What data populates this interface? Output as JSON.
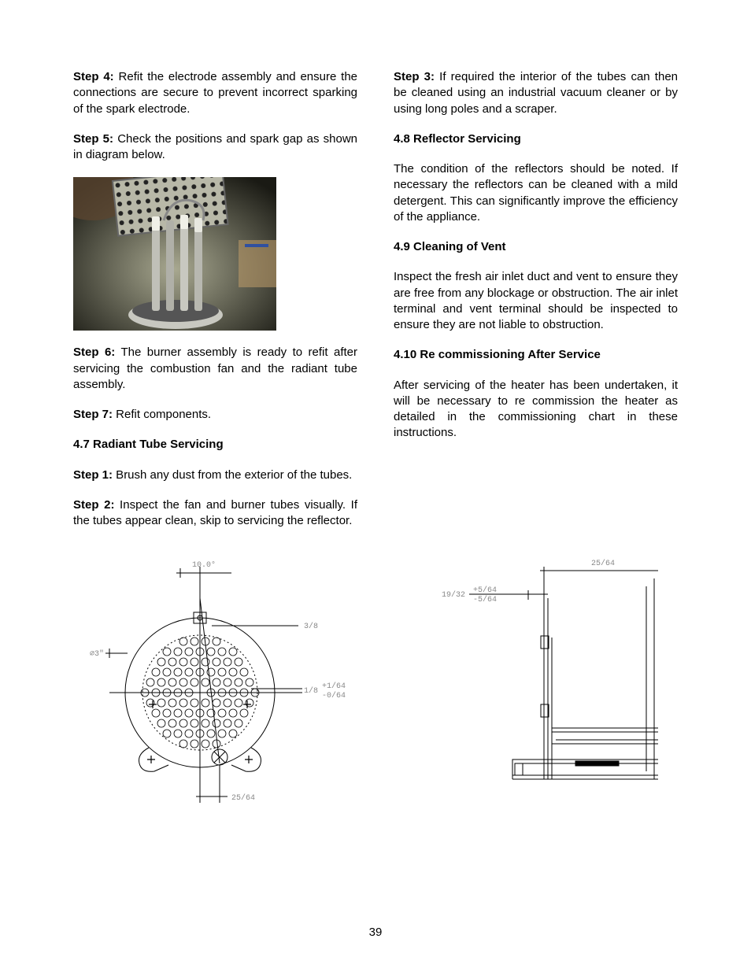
{
  "page_number": "39",
  "left_column": {
    "step4": {
      "label": "Step 4:",
      "text": " Refit the electrode assembly and ensure the connections are secure to prevent incorrect sparking of the spark electrode."
    },
    "step5": {
      "label": "Step 5:",
      "text": " Check the positions and spark gap as shown in diagram below."
    },
    "step6": {
      "label": "Step 6:",
      "text": " The burner assembly is ready to refit after servicing the combustion fan and the radiant tube assembly."
    },
    "step7": {
      "label": "Step 7:",
      "text": "  Refit components."
    },
    "h47": "4.7 Radiant Tube Servicing",
    "step1_47": {
      "label": "Step 1:",
      "text": " Brush any dust from the exterior of the tubes."
    },
    "step2_47": {
      "label": "Step 2:",
      "text": "  Inspect the fan and burner tubes visually. If the tubes appear clean, skip to servicing the reflector."
    }
  },
  "right_column": {
    "step3": {
      "label": "Step 3:",
      "text": " If required the interior of the tubes can then be cleaned using an industrial vacuum cleaner or by using long poles and a scraper."
    },
    "h48": "4.8 Reflector Servicing",
    "p48": "The condition of the reflectors should be noted. If necessary the reflectors can be cleaned with a mild detergent. This can significantly improve the efficiency of the appliance.",
    "h49": "4.9 Cleaning of Vent",
    "p49": "Inspect the fresh air inlet duct and vent to ensure they are free from any blockage or obstruction. The air inlet terminal and vent terminal should be inspected to ensure they are not liable to obstruction.",
    "h410": "4.10 Re commissioning After Service",
    "p410": "After servicing of the heater has been undertaken, it will be necessary to re commission the heater as detailed in the commissioning chart in these instructions."
  },
  "diagram_left": {
    "labels": {
      "angle": "10.0°",
      "diam": "∅3\"",
      "d1": "3/8",
      "d2": "1/8",
      "tol2a": "+1/64",
      "tol2b": "-0/64",
      "d3": "25/64"
    }
  },
  "diagram_right": {
    "labels": {
      "top": "25/64",
      "side": "19/32",
      "tola": "+5/64",
      "tolb": "-5/64"
    }
  },
  "colors": {
    "text": "#000000",
    "bg": "#ffffff",
    "diagram_stroke": "#000000",
    "diagram_label": "#888888"
  }
}
